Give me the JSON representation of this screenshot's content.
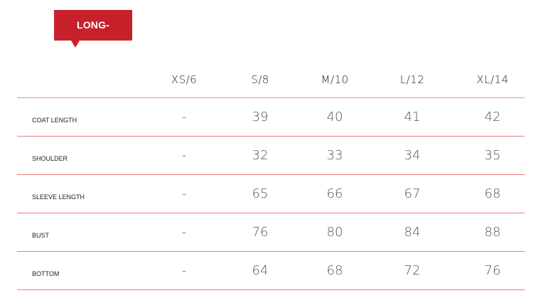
{
  "badge": {
    "label": "LONG-SLEEVED",
    "color": "#c8202a"
  },
  "columns": [
    "XS/6",
    "S/8",
    "M/10",
    "L/12",
    "XL/14"
  ],
  "rows": [
    {
      "label": "COAT LENGTH",
      "values": [
        "-",
        "39",
        "40",
        "41",
        "42"
      ]
    },
    {
      "label": "SHOULDER",
      "values": [
        "-",
        "32",
        "33",
        "34",
        "35"
      ]
    },
    {
      "label": "SLEEVE LENGTH",
      "values": [
        "-",
        "65",
        "66",
        "67",
        "68"
      ]
    },
    {
      "label": "BUST",
      "values": [
        "-",
        "76",
        "80",
        "84",
        "88"
      ]
    },
    {
      "label": "BOTTOM",
      "values": [
        "-",
        "64",
        "68",
        "72",
        "76"
      ]
    }
  ]
}
